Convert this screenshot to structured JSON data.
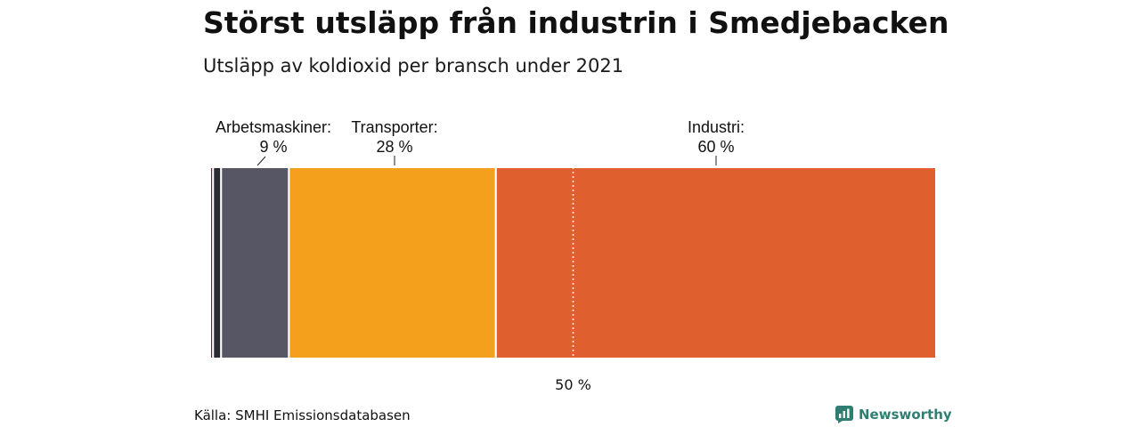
{
  "header": {
    "title": "Störst utsläpp från industrin i Smedjebacken",
    "subtitle": "Utsläpp av koldioxid per bransch under 2021"
  },
  "footer": {
    "source": "Källa: SMHI Emissionsdatabasen",
    "brand": "Newsworthy"
  },
  "chart_data": {
    "type": "bar",
    "orientation": "horizontal-stacked",
    "unit": "%",
    "xlim": [
      0,
      100
    ],
    "reference_line": {
      "value": 50,
      "label": "50 %",
      "style": "dotted"
    },
    "segments": [
      {
        "value": 0.4,
        "color": "#6b1a33",
        "category": "",
        "label": ""
      },
      {
        "value": 1.1,
        "color": "#2b2b33",
        "category": "",
        "label": ""
      },
      {
        "value": 9.3,
        "color": "#575664",
        "category": "Arbetsmaskiner:",
        "label": "9 %"
      },
      {
        "value": 28.4,
        "color": "#f5a01c",
        "category": "Transporter:",
        "label": "28 %"
      },
      {
        "value": 60.4,
        "color": "#e05f2e",
        "category": "Industri:",
        "label": "60 %"
      }
    ]
  }
}
